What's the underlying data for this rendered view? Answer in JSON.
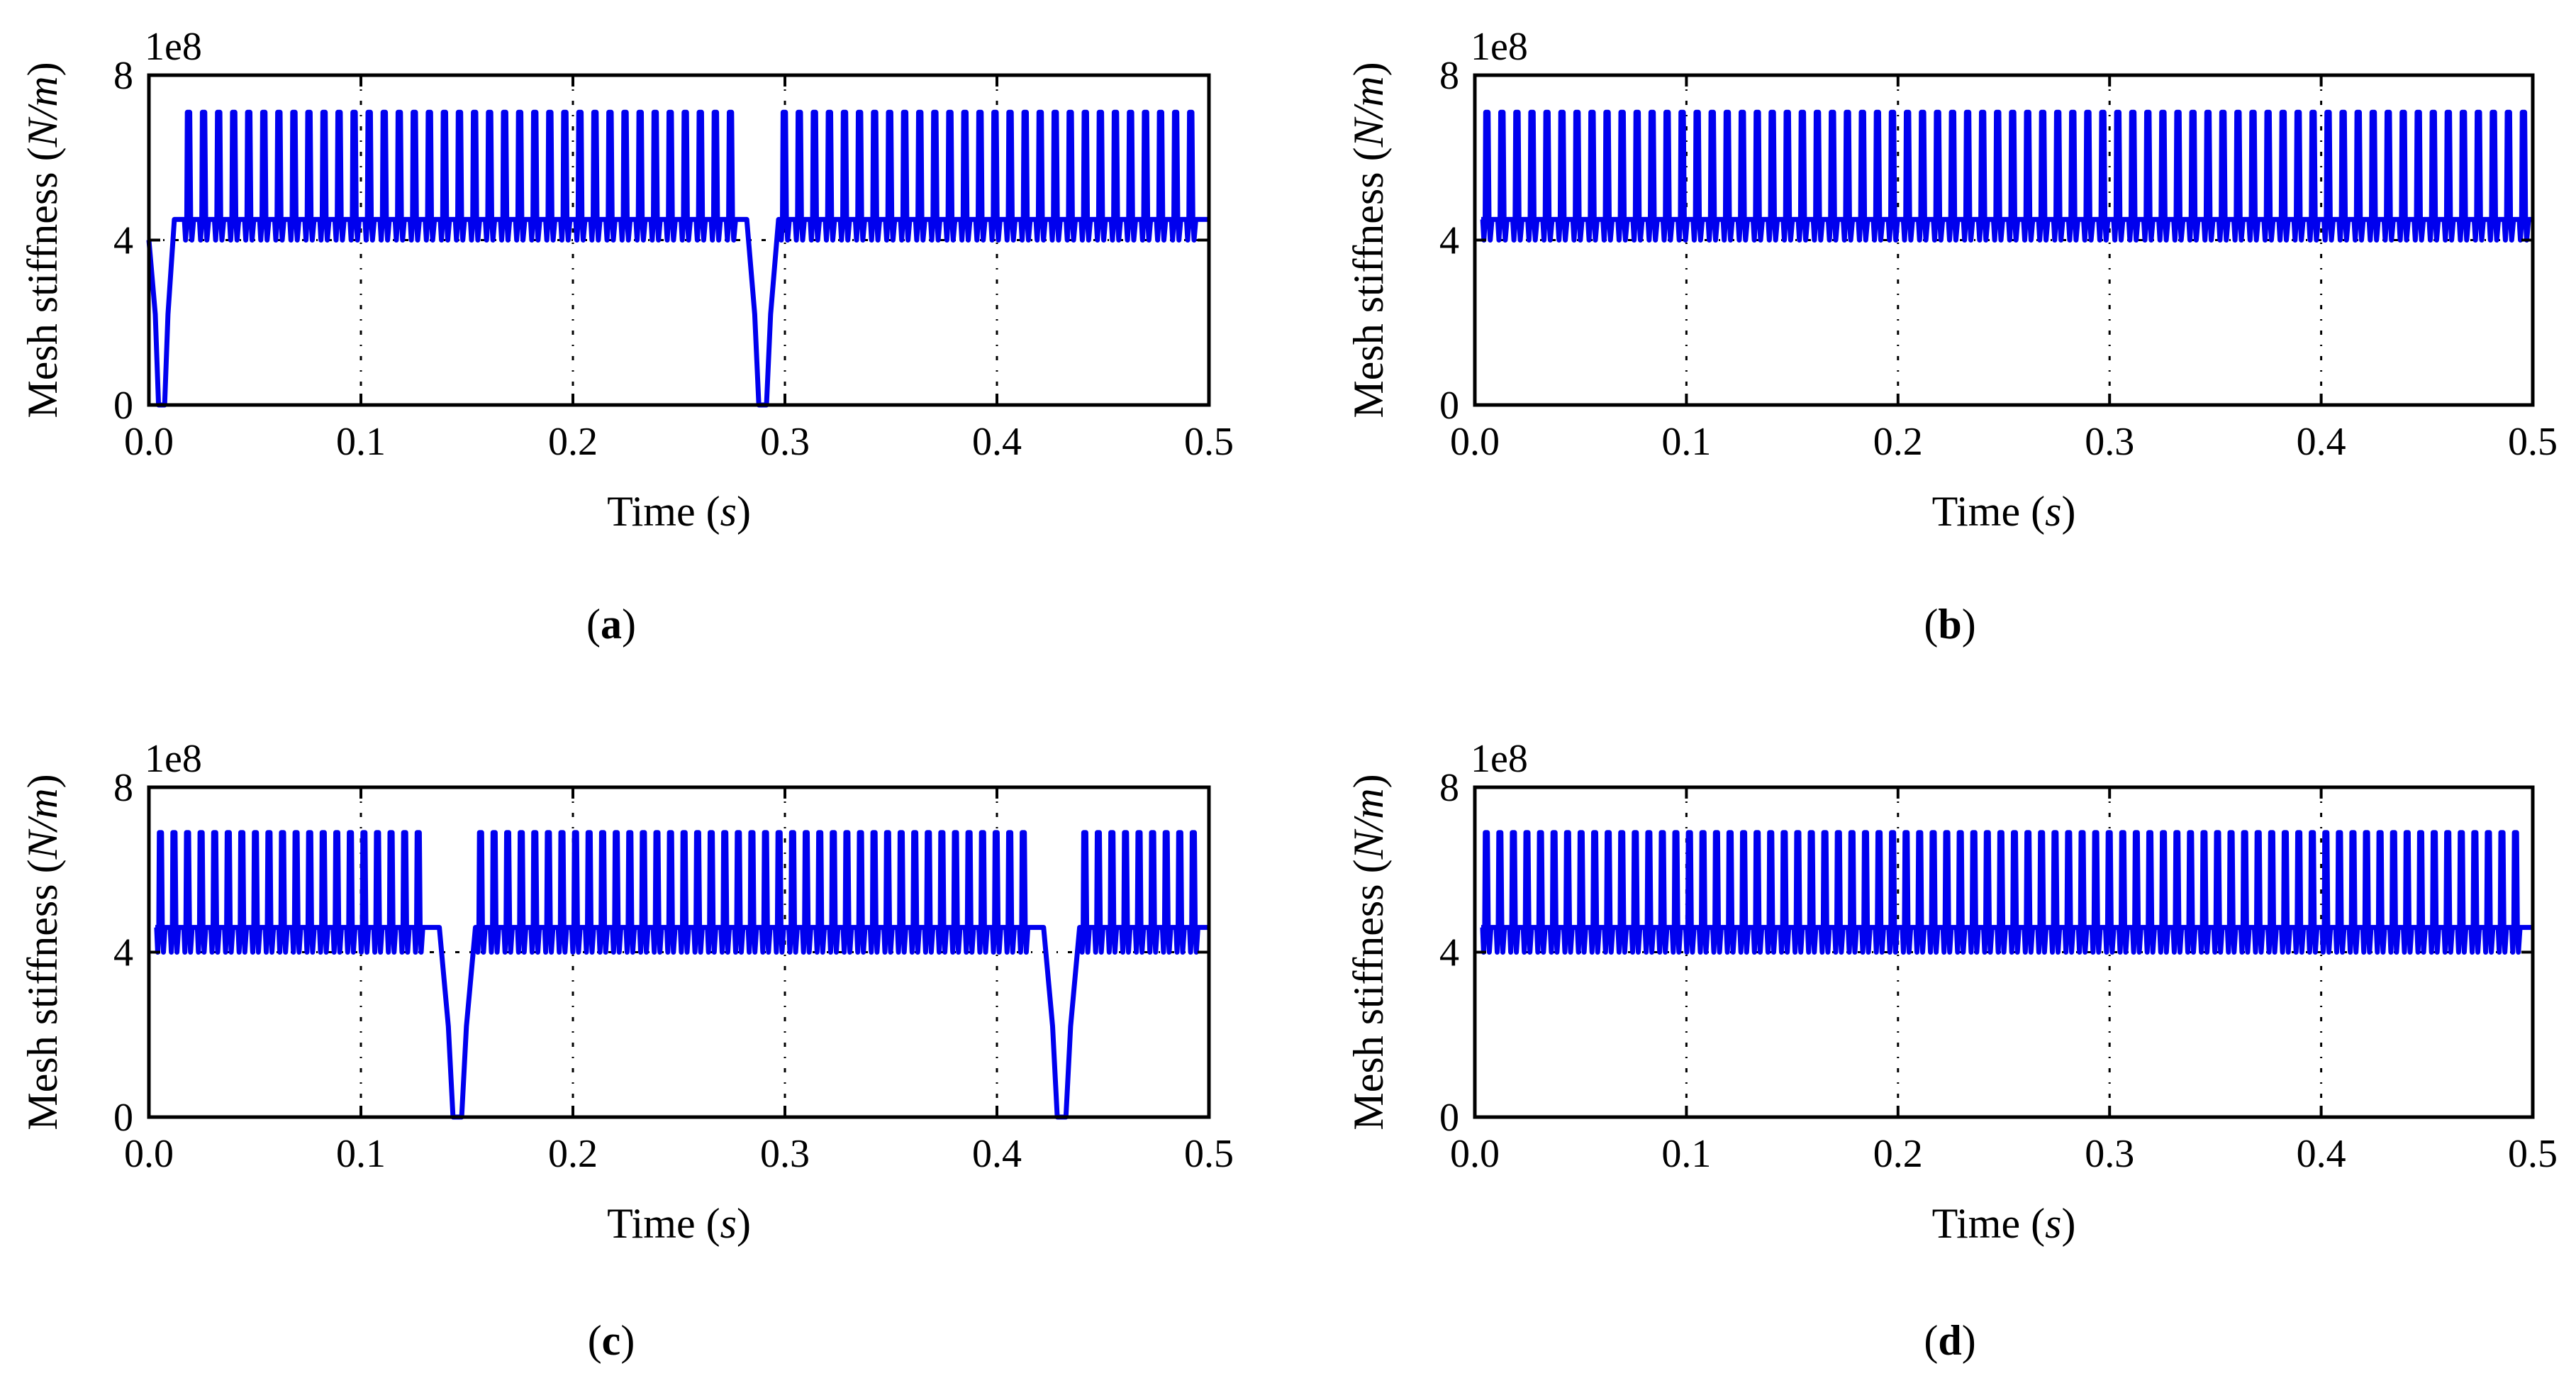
{
  "chart_data": [
    {
      "id": "a",
      "type": "line",
      "caption": "a",
      "multiplier": "1e8",
      "xlabel": "Time",
      "xunit": "s",
      "ylabel": "Mesh stiffness",
      "yunit": "N/m",
      "xlim": [
        0.0,
        0.5
      ],
      "ylim": [
        0,
        8
      ],
      "xticks": [
        "0.0",
        "0.1",
        "0.2",
        "0.3",
        "0.4",
        "0.5"
      ],
      "yticks": [
        "0",
        "4",
        "8"
      ],
      "grid": "vertical dash-dot at 0.1, 0.2, 0.3, 0.4; horizontal at 4",
      "series": [
        {
          "name": "mesh stiffness",
          "color": "#0000ee",
          "baseline": 4.0,
          "plateau": 4.5,
          "peak": 7.1,
          "period": 0.0071,
          "start_time": 0.016,
          "end_time": 0.5,
          "drops": [
            {
              "start": 0.0,
              "end": 0.012,
              "min": 0
            },
            {
              "start": 0.282,
              "end": 0.297,
              "min": 0
            }
          ]
        }
      ]
    },
    {
      "id": "b",
      "type": "line",
      "caption": "b",
      "multiplier": "1e8",
      "xlabel": "Time",
      "xunit": "s",
      "ylabel": "Mesh stiffness",
      "yunit": "N/m",
      "xlim": [
        0.0,
        0.5
      ],
      "ylim": [
        0,
        8
      ],
      "xticks": [
        "0.0",
        "0.1",
        "0.2",
        "0.3",
        "0.4",
        "0.5"
      ],
      "yticks": [
        "0",
        "4",
        "8"
      ],
      "grid": "vertical dash-dot at 0.1, 0.2, 0.3, 0.4; horizontal at 4",
      "series": [
        {
          "name": "mesh stiffness",
          "color": "#0000ee",
          "baseline": 4.0,
          "plateau": 4.5,
          "peak": 7.1,
          "period": 0.0071,
          "start_time": 0.003,
          "end_time": 0.5,
          "drops": []
        }
      ]
    },
    {
      "id": "c",
      "type": "line",
      "caption": "c",
      "multiplier": "1e8",
      "xlabel": "Time",
      "xunit": "s",
      "ylabel": "Mesh stiffness",
      "yunit": "N/m",
      "xlim": [
        0.0,
        0.5
      ],
      "ylim": [
        0,
        8
      ],
      "xticks": [
        "0.0",
        "0.1",
        "0.2",
        "0.3",
        "0.4",
        "0.5"
      ],
      "yticks": [
        "0",
        "4",
        "8"
      ],
      "grid": "vertical dash-dot at 0.1, 0.2, 0.3, 0.4; horizontal at 4",
      "series": [
        {
          "name": "mesh stiffness",
          "color": "#0000ee",
          "baseline": 4.0,
          "plateau": 4.6,
          "peak": 6.9,
          "period": 0.0064,
          "start_time": 0.003,
          "end_time": 0.5,
          "drops": [
            {
              "start": 0.137,
              "end": 0.154,
              "min": 0
            },
            {
              "start": 0.422,
              "end": 0.439,
              "min": 0
            }
          ]
        }
      ]
    },
    {
      "id": "d",
      "type": "line",
      "caption": "d",
      "multiplier": "1e8",
      "xlabel": "Time",
      "xunit": "s",
      "ylabel": "Mesh stiffness",
      "yunit": "N/m",
      "xlim": [
        0.0,
        0.5
      ],
      "ylim": [
        0,
        8
      ],
      "xticks": [
        "0.0",
        "0.1",
        "0.2",
        "0.3",
        "0.4",
        "0.5"
      ],
      "yticks": [
        "0",
        "4",
        "8"
      ],
      "grid": "vertical dash-dot at 0.1, 0.2, 0.3, 0.4; horizontal at 4",
      "series": [
        {
          "name": "mesh stiffness",
          "color": "#0000ee",
          "baseline": 4.0,
          "plateau": 4.6,
          "peak": 6.9,
          "period": 0.0064,
          "start_time": 0.003,
          "end_time": 0.5,
          "drops": []
        }
      ]
    }
  ]
}
